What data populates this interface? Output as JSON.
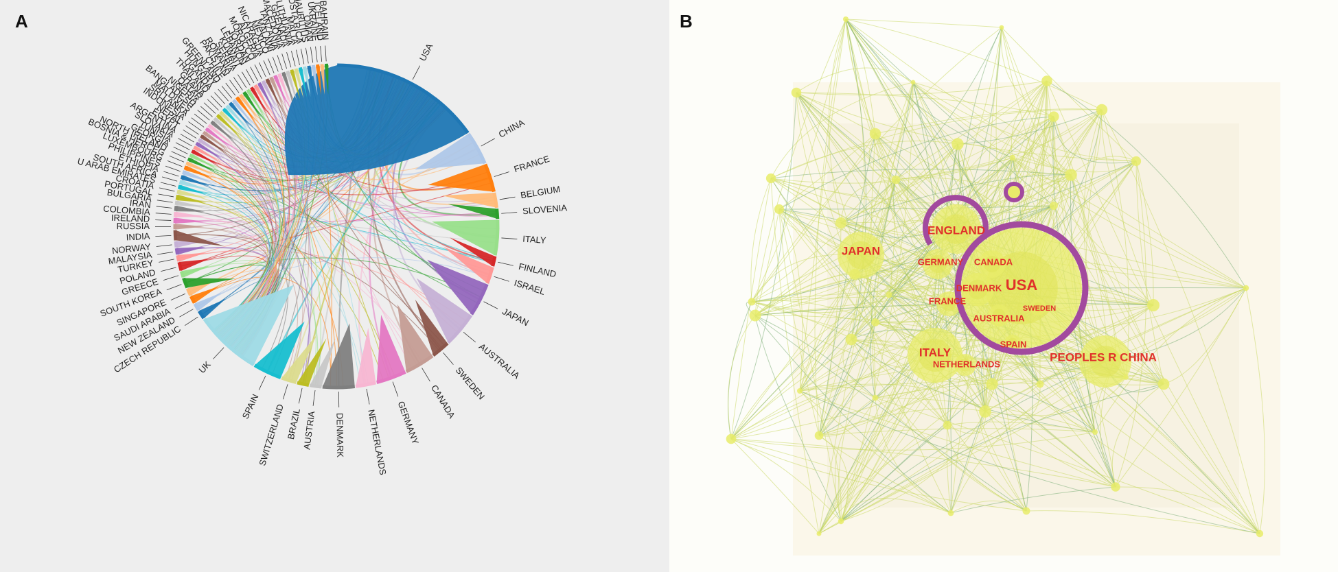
{
  "panel_a": {
    "label": "A",
    "countries": [
      {
        "name": "USA",
        "color": "#1f77b4",
        "w": 4.5
      },
      {
        "name": "CHINA",
        "color": "#aec7e8",
        "w": 1.0
      },
      {
        "name": "FRANCE",
        "color": "#ff7f0e",
        "w": 0.85
      },
      {
        "name": "BELGIUM",
        "color": "#ffbb78",
        "w": 0.45
      },
      {
        "name": "SLOVENIA",
        "color": "#2ca02c",
        "w": 0.3
      },
      {
        "name": "ITALY",
        "color": "#98df8a",
        "w": 1.05
      },
      {
        "name": "FINLAND",
        "color": "#d62728",
        "w": 0.3
      },
      {
        "name": "ISRAEL",
        "color": "#ff9896",
        "w": 0.5
      },
      {
        "name": "JAPAN",
        "color": "#9467bd",
        "w": 1.0
      },
      {
        "name": "AUSTRALIA",
        "color": "#c5b0d5",
        "w": 1.05
      },
      {
        "name": "SWEDEN",
        "color": "#8c564b",
        "w": 0.55
      },
      {
        "name": "CANADA",
        "color": "#c49c94",
        "w": 0.9
      },
      {
        "name": "GERMANY",
        "color": "#e377c2",
        "w": 0.9
      },
      {
        "name": "NETHERLANDS",
        "color": "#f7b6d2",
        "w": 0.6
      },
      {
        "name": "DENMARK",
        "color": "#7f7f7f",
        "w": 0.95
      },
      {
        "name": "AUSTRIA",
        "color": "#c7c7c7",
        "w": 0.35
      },
      {
        "name": "BRAZIL",
        "color": "#bcbd22",
        "w": 0.35
      },
      {
        "name": "SWITZERLAND",
        "color": "#dbdb8d",
        "w": 0.45
      },
      {
        "name": "SPAIN",
        "color": "#17becf",
        "w": 0.85
      },
      {
        "name": "UK",
        "color": "#9edae5",
        "w": 2.0
      },
      {
        "name": "CZECH REPUBLIC",
        "color": "#1f77b4",
        "w": 0.25
      },
      {
        "name": "NEW ZEALAND",
        "color": "#aec7e8",
        "w": 0.22
      },
      {
        "name": "SAUDI ARABIA",
        "color": "#ff7f0e",
        "w": 0.22
      },
      {
        "name": "SINGAPORE",
        "color": "#ffbb78",
        "w": 0.22
      },
      {
        "name": "SOUTH KOREA",
        "color": "#2ca02c",
        "w": 0.3
      },
      {
        "name": "GREECE",
        "color": "#98df8a",
        "w": 0.18
      },
      {
        "name": "POLAND",
        "color": "#d62728",
        "w": 0.25
      },
      {
        "name": "TURKEY",
        "color": "#ff9896",
        "w": 0.18
      },
      {
        "name": "MALAYSIA",
        "color": "#9467bd",
        "w": 0.18
      },
      {
        "name": "NORWAY",
        "color": "#c5b0d5",
        "w": 0.18
      },
      {
        "name": "INDIA",
        "color": "#8c564b",
        "w": 0.3
      },
      {
        "name": "RUSSIA",
        "color": "#c49c94",
        "w": 0.15
      },
      {
        "name": "IRELAND",
        "color": "#e377c2",
        "w": 0.15
      },
      {
        "name": "COLOMBIA",
        "color": "#f7b6d2",
        "w": 0.15
      },
      {
        "name": "IRAN",
        "color": "#7f7f7f",
        "w": 0.15
      },
      {
        "name": "BULGARIA",
        "color": "#c7c7c7",
        "w": 0.12
      },
      {
        "name": "PORTUGAL",
        "color": "#bcbd22",
        "w": 0.15
      },
      {
        "name": "CROATIA",
        "color": "#dbdb8d",
        "w": 0.12
      },
      {
        "name": "U ARAB EMIRATES",
        "color": "#17becf",
        "w": 0.12
      },
      {
        "name": "SOUTH AFRICA",
        "color": "#9edae5",
        "w": 0.12
      },
      {
        "name": "ETHIOPIA",
        "color": "#1f77b4",
        "w": 0.12
      },
      {
        "name": "PHILIPPINES",
        "color": "#aec7e8",
        "w": 0.12
      },
      {
        "name": "LUXEMBOURG",
        "color": "#ff7f0e",
        "w": 0.12
      },
      {
        "name": "BOSNIA & HERCEG",
        "color": "#ffbb78",
        "w": 0.1
      },
      {
        "name": "NORTH IRELAND",
        "color": "#2ca02c",
        "w": 0.1
      },
      {
        "name": "GEORGIA",
        "color": "#98df8a",
        "w": 0.1
      },
      {
        "name": "TUNISIA",
        "color": "#d62728",
        "w": 0.1
      },
      {
        "name": "SLOVAKIA",
        "color": "#ff9896",
        "w": 0.1
      },
      {
        "name": "ARGENTINA",
        "color": "#9467bd",
        "w": 0.1
      },
      {
        "name": "EGYPT",
        "color": "#c5b0d5",
        "w": 0.1
      },
      {
        "name": "NEPAL",
        "color": "#8c564b",
        "w": 0.1
      },
      {
        "name": "INDONESIA",
        "color": "#c49c94",
        "w": 0.1
      },
      {
        "name": "SRI LANKA",
        "color": "#e377c2",
        "w": 0.1
      },
      {
        "name": "MALDIVES",
        "color": "#f7b6d2",
        "w": 0.1
      },
      {
        "name": "BANGLADESH",
        "color": "#7f7f7f",
        "w": 0.1
      },
      {
        "name": "NIGERIA",
        "color": "#c7c7c7",
        "w": 0.1
      },
      {
        "name": "QATAR",
        "color": "#bcbd22",
        "w": 0.1
      },
      {
        "name": "GHANA",
        "color": "#dbdb8d",
        "w": 0.1
      },
      {
        "name": "THAILAND",
        "color": "#17becf",
        "w": 0.1
      },
      {
        "name": "UGANDA",
        "color": "#9edae5",
        "w": 0.1
      },
      {
        "name": "HUNGARY",
        "color": "#1f77b4",
        "w": 0.1
      },
      {
        "name": "GREENLAND",
        "color": "#aec7e8",
        "w": 0.1
      },
      {
        "name": "CHILE",
        "color": "#ff7f0e",
        "w": 0.1
      },
      {
        "name": "PAKISTAN",
        "color": "#ffbb78",
        "w": 0.1
      },
      {
        "name": "ROMANIA",
        "color": "#2ca02c",
        "w": 0.1
      },
      {
        "name": "SERBIA",
        "color": "#98df8a",
        "w": 0.1
      },
      {
        "name": "KUWAIT",
        "color": "#d62728",
        "w": 0.1
      },
      {
        "name": "LEBANON",
        "color": "#ff9896",
        "w": 0.1
      },
      {
        "name": "JORDAN",
        "color": "#9467bd",
        "w": 0.1
      },
      {
        "name": "MOROCCO",
        "color": "#c5b0d5",
        "w": 0.1
      },
      {
        "name": "ALGERIA",
        "color": "#8c564b",
        "w": 0.1
      },
      {
        "name": "NICARAGUA",
        "color": "#c49c94",
        "w": 0.1
      },
      {
        "name": "MEXICO",
        "color": "#e377c2",
        "w": 0.1
      },
      {
        "name": "MALAWI",
        "color": "#f7b6d2",
        "w": 0.1
      },
      {
        "name": "TANZANIA",
        "color": "#7f7f7f",
        "w": 0.1
      },
      {
        "name": "MACEDONIA",
        "color": "#c7c7c7",
        "w": 0.1
      },
      {
        "name": "GRENADA",
        "color": "#bcbd22",
        "w": 0.1
      },
      {
        "name": "LITHUANIA",
        "color": "#dbdb8d",
        "w": 0.1
      },
      {
        "name": "MALTA",
        "color": "#17becf",
        "w": 0.1
      },
      {
        "name": "COSTA RICA",
        "color": "#9edae5",
        "w": 0.1
      },
      {
        "name": "MAURITIUS",
        "color": "#1f77b4",
        "w": 0.1
      },
      {
        "name": "OMAN",
        "color": "#aec7e8",
        "w": 0.1
      },
      {
        "name": "UKRAINE",
        "color": "#ff7f0e",
        "w": 0.1
      },
      {
        "name": "ICELAND",
        "color": "#ffbb78",
        "w": 0.1
      },
      {
        "name": "BAHRAIN",
        "color": "#2ca02c",
        "w": 0.1
      }
    ]
  },
  "panel_b": {
    "label": "B",
    "labeled_nodes": [
      {
        "name": "USA"
      },
      {
        "name": "ENGLAND"
      },
      {
        "name": "JAPAN"
      },
      {
        "name": "ITALY"
      },
      {
        "name": "PEOPLES R CHINA"
      },
      {
        "name": "GERMANY"
      },
      {
        "name": "CANADA"
      },
      {
        "name": "DENMARK"
      },
      {
        "name": "FRANCE"
      },
      {
        "name": "SWEDEN"
      },
      {
        "name": "AUSTRALIA"
      },
      {
        "name": "SPAIN"
      },
      {
        "name": "NETHERLANDS"
      }
    ],
    "colors": {
      "node": "#e8ec6a",
      "ring": "#a24a9e",
      "label": "#e0302a",
      "edge": "#cbd866"
    }
  }
}
